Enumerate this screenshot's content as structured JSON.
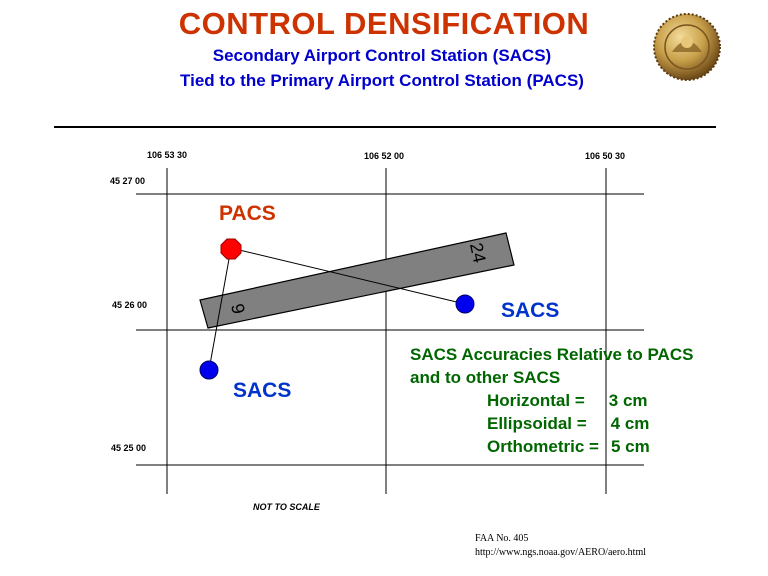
{
  "title": "CONTROL DENSIFICATION",
  "subtitle_1": "Secondary Airport Control Station (SACS)",
  "subtitle_2": "Tied to the Primary Airport Control Station (PACS)",
  "seal_icon": "noaa-seal-icon",
  "longitudes": [
    "106 53 30",
    "106 52 00",
    "106 50 30"
  ],
  "latitudes": [
    "45 27 00",
    "45 26 00",
    "45 25 00"
  ],
  "runway": {
    "end_a": "9",
    "end_b": "24"
  },
  "stations": {
    "pacs": {
      "label": "PACS",
      "color": "#ff0000"
    },
    "sacs_east": {
      "label": "SACS",
      "color": "#0000ee"
    },
    "sacs_south": {
      "label": "SACS",
      "color": "#0000ee"
    }
  },
  "accuracies": {
    "heading_1": "SACS Accuracies Relative to PACS",
    "heading_2": "and to other SACS",
    "rows": [
      {
        "label": "Horizontal =",
        "value": "3 cm"
      },
      {
        "label": "Ellipsoidal =",
        "value": "4 cm"
      },
      {
        "label": "Orthometric =",
        "value": "5 cm"
      }
    ]
  },
  "scale_note": "NOT TO SCALE",
  "footer": {
    "faa": "FAA No. 405",
    "url": "http://www.ngs.noaa.gov/AERO/aero.html"
  },
  "colors": {
    "title": "#cc3300",
    "subtitle": "#0000cc",
    "accuracy_text": "#006600",
    "runway": "#808080"
  }
}
